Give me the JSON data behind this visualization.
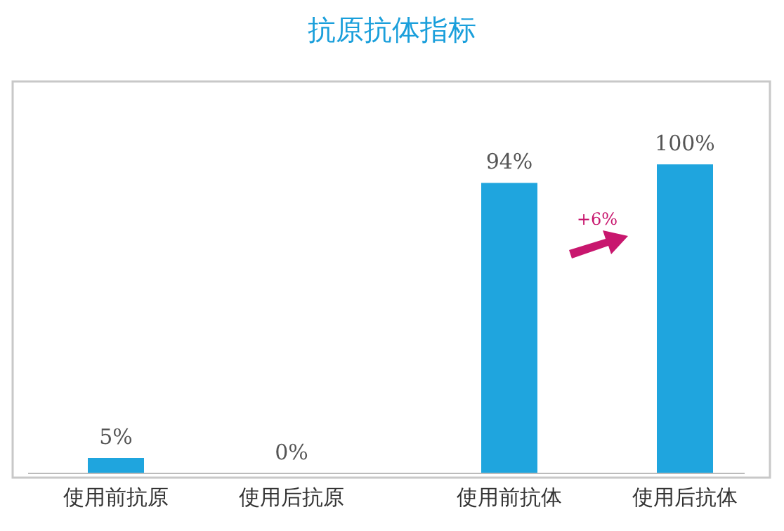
{
  "chart_data": {
    "type": "bar",
    "title": "抗原抗体指标",
    "categories": [
      "使用前抗原",
      "使用后抗原",
      "使用前抗体",
      "使用后抗体"
    ],
    "values": [
      5,
      0,
      94,
      100
    ],
    "value_labels": [
      "5%",
      "0%",
      "94%",
      "100%"
    ],
    "color": "#1fa5de",
    "annotations": [
      "+6%"
    ]
  }
}
